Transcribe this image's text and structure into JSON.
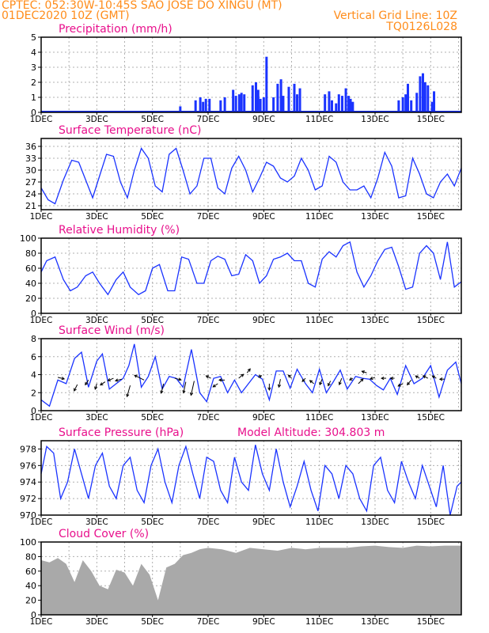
{
  "header": {
    "line1": "CPTEC:  052:30W-10:45S  SAO JOSE DO XINGU (MT)",
    "line2": "01DEC2020 10Z (GMT)",
    "grid_note": "Vertical Grid Line: 10Z",
    "run_id": "TQ0126L028",
    "model_altitude": "Model Altitude: 304.803 m"
  },
  "colors": {
    "header": "#ff8c1a",
    "title": "#e8108c",
    "series": "#1a33ff",
    "wind_arrow": "#000000",
    "cloud": "#a9a9a9",
    "grid": "#b0b0b0"
  },
  "x_axis": {
    "labels": [
      "1DEC",
      "3DEC",
      "5DEC",
      "7DEC",
      "9DEC",
      "11DEC",
      "13DEC",
      "15DEC"
    ],
    "day_start": 1,
    "day_end": 16.1
  },
  "chart_data": [
    {
      "type": "bar",
      "title": "Precipitation (mm/h)",
      "ylim": [
        0,
        5
      ],
      "yticks": [
        "0",
        "1",
        "2",
        "3",
        "4",
        "5"
      ],
      "x": [
        6.0,
        6.55,
        6.72,
        6.82,
        6.92,
        7.05,
        7.45,
        7.6,
        7.9,
        8.0,
        8.12,
        8.2,
        8.3,
        8.6,
        8.72,
        8.8,
        8.88,
        9.0,
        9.1,
        9.35,
        9.5,
        9.62,
        9.7,
        9.9,
        10.1,
        10.2,
        10.3,
        11.2,
        11.35,
        11.45,
        11.6,
        11.7,
        11.82,
        11.95,
        12.05,
        12.12,
        12.2,
        13.85,
        14.0,
        14.1,
        14.18,
        14.3,
        14.5,
        14.62,
        14.72,
        14.8,
        14.9,
        15.05,
        15.12
      ],
      "y": [
        0.4,
        0.8,
        1.0,
        0.7,
        0.9,
        0.9,
        0.8,
        1.0,
        1.5,
        1.1,
        1.2,
        1.3,
        1.2,
        1.8,
        2.0,
        1.5,
        0.9,
        1.0,
        3.7,
        1.0,
        1.9,
        2.2,
        1.1,
        1.7,
        1.9,
        1.2,
        1.6,
        1.2,
        1.4,
        0.8,
        0.6,
        1.2,
        1.1,
        1.6,
        1.1,
        0.9,
        0.7,
        0.8,
        1.0,
        1.2,
        1.9,
        0.8,
        1.3,
        2.4,
        2.6,
        2.0,
        1.8,
        0.7,
        1.4
      ]
    },
    {
      "type": "line",
      "title": "Surface Temperature (nC)",
      "ylim": [
        20,
        38
      ],
      "yticks": [
        "21",
        "24",
        "27",
        "30",
        "33",
        "36"
      ],
      "x": [
        1.0,
        1.25,
        1.5,
        1.8,
        2.1,
        2.35,
        2.6,
        2.85,
        3.1,
        3.35,
        3.6,
        3.85,
        4.1,
        4.35,
        4.6,
        4.85,
        5.1,
        5.35,
        5.6,
        5.85,
        6.1,
        6.35,
        6.6,
        6.85,
        7.1,
        7.35,
        7.6,
        7.85,
        8.1,
        8.35,
        8.6,
        8.85,
        9.1,
        9.35,
        9.6,
        9.85,
        10.1,
        10.35,
        10.6,
        10.85,
        11.1,
        11.35,
        11.6,
        11.85,
        12.1,
        12.35,
        12.6,
        12.85,
        13.1,
        13.35,
        13.6,
        13.85,
        14.1,
        14.35,
        14.6,
        14.85,
        15.1,
        15.35,
        15.6,
        15.85,
        16.1
      ],
      "y": [
        25.5,
        22.5,
        21.5,
        27.5,
        32.5,
        32,
        27.5,
        23,
        28.5,
        34,
        33.5,
        27,
        23,
        30,
        35.5,
        33,
        26,
        24.5,
        34,
        35.5,
        30,
        24,
        26,
        33,
        33,
        25.5,
        24,
        30.5,
        33.5,
        30,
        24.5,
        28,
        32,
        31,
        28,
        27,
        28.5,
        33,
        30,
        25,
        26,
        33.5,
        32,
        27,
        25,
        25,
        26,
        23,
        28,
        34.5,
        31,
        23,
        23.5,
        33,
        29,
        24,
        23,
        27,
        29,
        26,
        30.5
      ]
    },
    {
      "type": "line",
      "title": "Relative Humidity (%)",
      "ylim": [
        0,
        100
      ],
      "yticks": [
        "0",
        "20",
        "40",
        "60",
        "80",
        "100"
      ],
      "x": [
        1.0,
        1.2,
        1.5,
        1.8,
        2.05,
        2.3,
        2.6,
        2.85,
        3.1,
        3.4,
        3.7,
        3.95,
        4.2,
        4.5,
        4.75,
        5.0,
        5.25,
        5.55,
        5.8,
        6.05,
        6.3,
        6.6,
        6.85,
        7.1,
        7.35,
        7.6,
        7.85,
        8.1,
        8.35,
        8.6,
        8.85,
        9.1,
        9.35,
        9.6,
        9.85,
        10.1,
        10.35,
        10.6,
        10.85,
        11.1,
        11.35,
        11.6,
        11.85,
        12.1,
        12.35,
        12.6,
        12.85,
        13.1,
        13.35,
        13.6,
        13.85,
        14.1,
        14.35,
        14.6,
        14.85,
        15.1,
        15.35,
        15.6,
        15.85,
        16.1
      ],
      "y": [
        55,
        70,
        75,
        45,
        30,
        35,
        50,
        55,
        40,
        25,
        45,
        55,
        35,
        25,
        30,
        60,
        65,
        30,
        30,
        75,
        72,
        40,
        40,
        70,
        76,
        72,
        50,
        52,
        78,
        70,
        40,
        50,
        72,
        75,
        80,
        70,
        70,
        40,
        35,
        72,
        82,
        75,
        90,
        95,
        55,
        35,
        50,
        70,
        85,
        88,
        62,
        32,
        35,
        80,
        90,
        80,
        45,
        95,
        35,
        42
      ]
    },
    {
      "type": "line",
      "title": "Surface Wind (m/s)",
      "ylim": [
        0,
        8
      ],
      "yticks": [
        "0",
        "2",
        "4",
        "6",
        "8"
      ],
      "x": [
        1.0,
        1.3,
        1.6,
        1.9,
        2.2,
        2.45,
        2.7,
        3.0,
        3.2,
        3.45,
        3.7,
        3.95,
        4.15,
        4.35,
        4.6,
        4.85,
        5.1,
        5.35,
        5.6,
        5.85,
        6.1,
        6.4,
        6.7,
        6.95,
        7.2,
        7.45,
        7.7,
        7.95,
        8.2,
        8.45,
        8.7,
        8.95,
        9.2,
        9.45,
        9.7,
        9.95,
        10.2,
        10.5,
        10.75,
        11.0,
        11.25,
        11.5,
        11.75,
        12.0,
        12.3,
        12.55,
        12.8,
        13.05,
        13.3,
        13.55,
        13.8,
        14.1,
        14.4,
        14.7,
        15.0,
        15.3,
        15.6,
        15.9,
        16.1
      ],
      "y": [
        1.2,
        0.5,
        3.4,
        3.0,
        5.8,
        6.5,
        2.6,
        5.5,
        6.3,
        2.4,
        3.0,
        3.6,
        5.0,
        7.4,
        2.6,
        3.8,
        6.0,
        2.4,
        3.8,
        3.6,
        2.6,
        6.8,
        2.0,
        1.0,
        3.6,
        3.8,
        2.0,
        3.4,
        2.0,
        3.0,
        4.0,
        3.5,
        1.2,
        4.4,
        4.4,
        2.5,
        4.6,
        3.0,
        2.0,
        4.6,
        2.0,
        3.2,
        4.5,
        2.4,
        3.8,
        3.6,
        3.5,
        2.8,
        2.3,
        3.6,
        1.8,
        5.0,
        3.0,
        3.6,
        5.0,
        1.5,
        4.5,
        5.4,
        3.0
      ]
    },
    {
      "type": "line",
      "title": "Surface Pressure (hPa)",
      "ylim": [
        970,
        979
      ],
      "yticks": [
        "970",
        "972",
        "974",
        "976",
        "978"
      ],
      "x": [
        1.0,
        1.2,
        1.45,
        1.7,
        1.95,
        2.2,
        2.45,
        2.7,
        2.95,
        3.2,
        3.45,
        3.7,
        3.95,
        4.2,
        4.45,
        4.7,
        4.95,
        5.2,
        5.45,
        5.7,
        5.95,
        6.2,
        6.45,
        6.7,
        6.95,
        7.2,
        7.45,
        7.7,
        7.95,
        8.2,
        8.45,
        8.7,
        8.95,
        9.2,
        9.45,
        9.7,
        9.95,
        10.2,
        10.45,
        10.7,
        10.95,
        11.2,
        11.45,
        11.7,
        11.95,
        12.2,
        12.45,
        12.7,
        12.95,
        13.2,
        13.45,
        13.7,
        13.95,
        14.2,
        14.45,
        14.7,
        14.95,
        15.2,
        15.45,
        15.7,
        15.95,
        16.1
      ],
      "y": [
        975,
        978.3,
        977.5,
        972,
        974,
        978,
        975,
        972,
        976,
        977.5,
        973.5,
        972,
        976,
        977,
        973,
        971.5,
        976,
        978,
        974,
        971.5,
        976,
        978.3,
        975,
        972,
        977,
        976.5,
        973,
        971.5,
        977,
        974,
        973,
        978.5,
        975,
        973,
        978,
        974,
        971,
        973.5,
        976.5,
        973,
        970.5,
        976,
        975,
        972,
        976,
        975,
        972,
        970.5,
        976,
        977,
        973,
        971.5,
        976.5,
        974,
        972,
        976,
        973.5,
        971,
        976,
        970,
        973.5,
        974
      ]
    },
    {
      "type": "area",
      "title": "Cloud Cover (%)",
      "ylim": [
        0,
        100
      ],
      "yticks": [
        "0",
        "20",
        "40",
        "60",
        "80",
        "100"
      ],
      "x": [
        1.0,
        1.3,
        1.6,
        1.9,
        2.2,
        2.5,
        2.8,
        3.1,
        3.4,
        3.7,
        4.0,
        4.3,
        4.6,
        4.9,
        5.2,
        5.5,
        5.8,
        6.1,
        6.4,
        6.7,
        7.0,
        7.5,
        8.0,
        8.5,
        9.0,
        9.5,
        10.0,
        10.5,
        11.0,
        11.5,
        12.0,
        12.5,
        13.0,
        13.5,
        14.0,
        14.5,
        15.0,
        15.5,
        16.1
      ],
      "y": [
        75,
        72,
        78,
        70,
        45,
        75,
        60,
        40,
        35,
        62,
        58,
        40,
        70,
        55,
        20,
        65,
        70,
        82,
        85,
        90,
        92,
        90,
        85,
        92,
        90,
        88,
        92,
        90,
        92,
        92,
        92,
        94,
        95,
        93,
        92,
        95,
        94,
        95,
        95
      ]
    }
  ]
}
